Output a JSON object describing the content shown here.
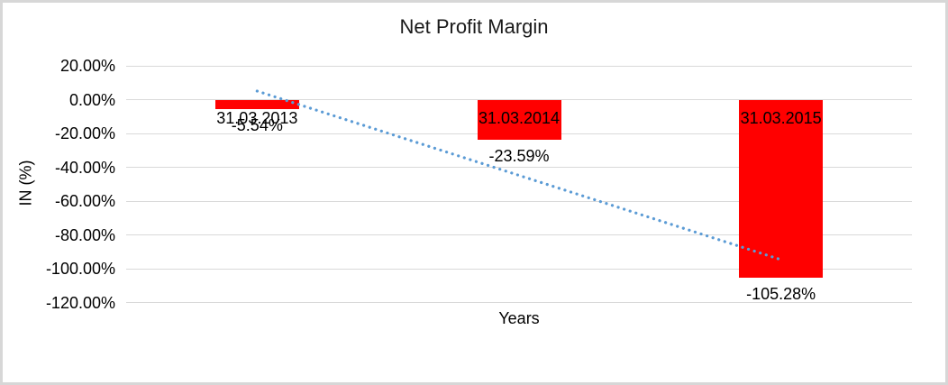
{
  "chart_data": {
    "type": "bar",
    "title": "Net Profit Margin",
    "xlabel": "Years",
    "ylabel": "IN (%)",
    "categories": [
      "31.03.2013",
      "31.03.2014",
      "31.03.2015"
    ],
    "values": [
      -5.54,
      -23.59,
      -105.28
    ],
    "data_labels": [
      "-5.54%",
      "-23.59%",
      "-105.28%"
    ],
    "y_ticks": [
      {
        "label": "20.00%",
        "value": 20
      },
      {
        "label": "0.00%",
        "value": 0
      },
      {
        "label": "-20.00%",
        "value": -20
      },
      {
        "label": "-40.00%",
        "value": -40
      },
      {
        "label": "-60.00%",
        "value": -60
      },
      {
        "label": "-80.00%",
        "value": -80
      },
      {
        "label": "-100.00%",
        "value": -100
      },
      {
        "label": "-120.00%",
        "value": -120
      }
    ],
    "ylim": [
      -120,
      20
    ],
    "grid": true,
    "legend": "none",
    "bar_color": "#FF0000",
    "gridline_color": "#D9D9D9",
    "text_color": "#000000",
    "trendline": {
      "type": "linear",
      "style": "dotted",
      "color": "#5B9BD5"
    }
  }
}
